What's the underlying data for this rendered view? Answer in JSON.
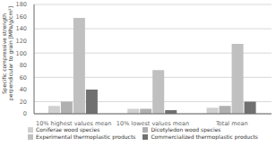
{
  "chart_data": {
    "type": "bar",
    "categories": [
      "10% highest values mean",
      "10% lowest values mean",
      "Total mean"
    ],
    "series": [
      {
        "name": "Coniferae wood species",
        "color": "#d0d0d0",
        "values": [
          13,
          8,
          10
        ]
      },
      {
        "name": "Dicotyledon wood species",
        "color": "#b0b0b0",
        "values": [
          20,
          8,
          13
        ]
      },
      {
        "name": "Experimental thermoplastic products",
        "color": "#c0c0c0",
        "values": [
          158,
          72,
          115
        ]
      },
      {
        "name": "Commercialized thermoplastic products",
        "color": "#707070",
        "values": [
          40,
          6,
          20
        ]
      }
    ],
    "ylabel": "Specific compressive strength\nperpendicular to grain [MPa/g/cm²]",
    "ylim": [
      0,
      180
    ],
    "yticks": [
      0,
      20,
      40,
      60,
      80,
      100,
      120,
      140,
      160,
      180
    ],
    "grid": true,
    "legend": "bottom"
  }
}
